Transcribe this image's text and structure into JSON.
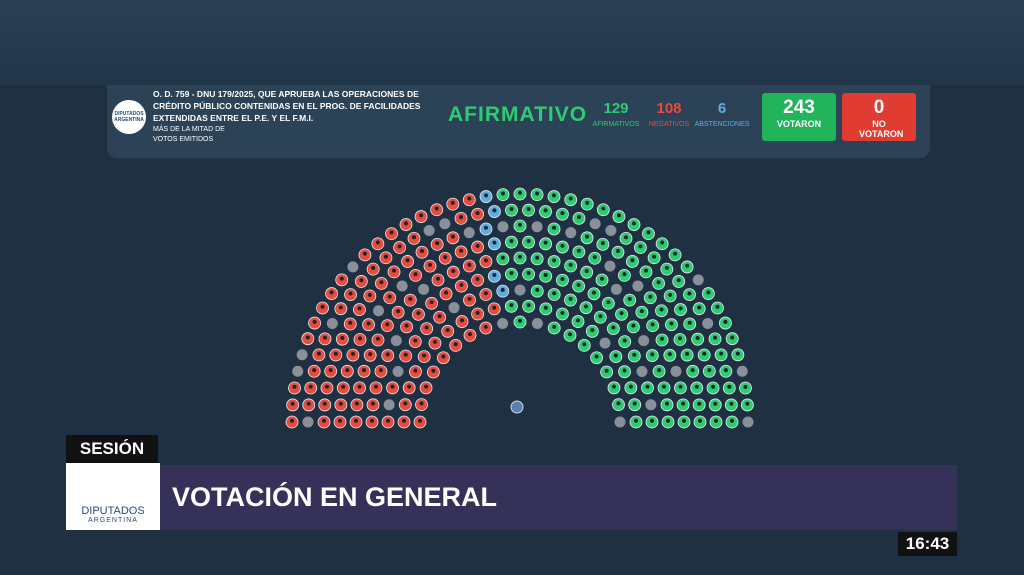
{
  "header": {
    "logo_text": "DIPUTADOS",
    "logo_sub": "ARGENTINA",
    "motion": "O. D. 759 - DNU 179/2025, QUE APRUEBA LAS OPERACIONES DE CRÉDITO PÚBLICO CONTENIDAS EN EL PROG. DE FACILIDADES EXTENDIDAS ENTRE EL P.E. Y EL F.M.I.",
    "majority": "MÁS DE LA MITAD DE VOTOS EMITIDOS",
    "result": "AFIRMATIVO",
    "tallies": [
      {
        "count": 129,
        "label": "AFIRMATIVOS",
        "color": "#2ecc71"
      },
      {
        "count": 108,
        "label": "NEGATIVOS",
        "color": "#e74c3c"
      },
      {
        "count": 6,
        "label": "ABSTENCIONES",
        "color": "#5dade2"
      }
    ],
    "voted": {
      "count": 243,
      "label": "VOTARON"
    },
    "not_voted": {
      "count": 0,
      "label": "NO VOTARON"
    }
  },
  "lower_third": {
    "tag": "SESIÓN",
    "logo_text": "DIPUTADOS",
    "logo_sub": "ARGENTINA",
    "title": "VOTACIÓN EN GENERAL"
  },
  "clock": "16:43"
}
